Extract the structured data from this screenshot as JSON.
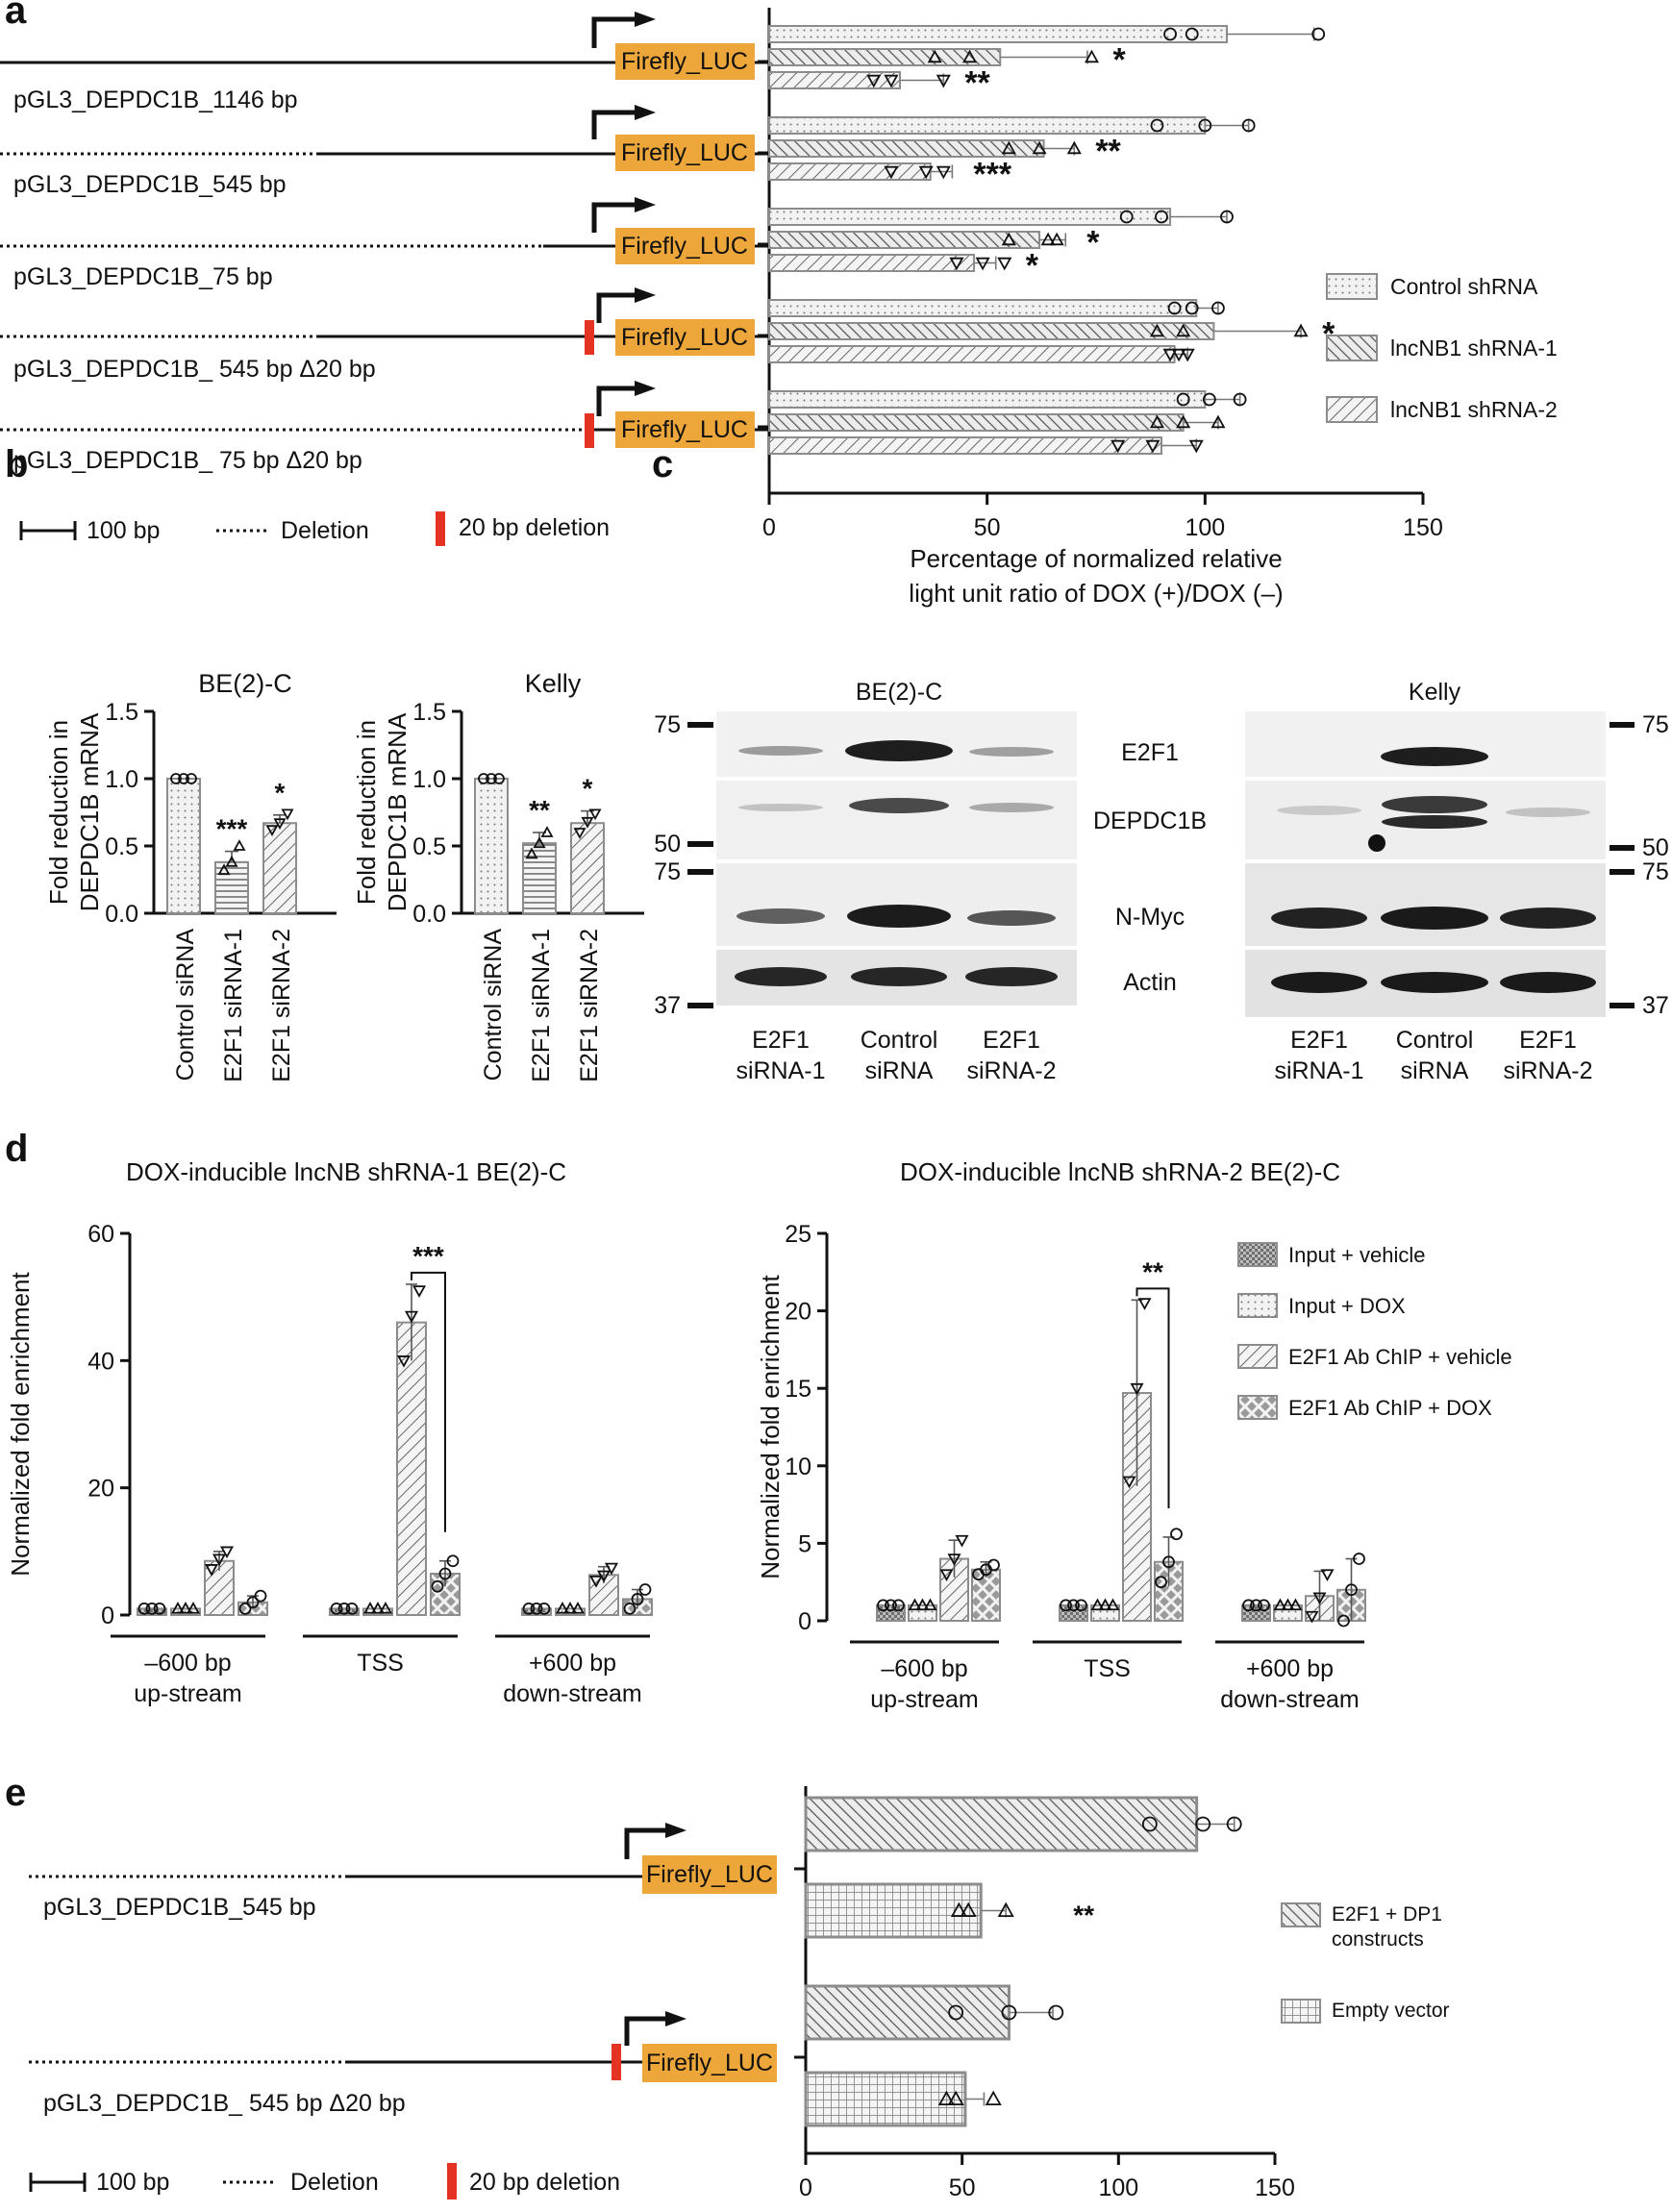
{
  "panels": [
    {
      "letter": "a"
    },
    {
      "letter": "b"
    },
    {
      "letter": "c"
    },
    {
      "letter": "d"
    },
    {
      "letter": "e"
    }
  ],
  "colors": {
    "orange": "#ECA639",
    "red": "#E53323",
    "bar_edge": "#8c8c8c",
    "bar_fill": "#eeeeee"
  },
  "construct_labels_a": [
    "pGL3_DEPDC1B_1146 bp",
    "pGL3_DEPDC1B_545 bp",
    "pGL3_DEPDC1B_75 bp",
    "pGL3_DEPDC1B_ 545 bp Δ20 bp",
    "pGL3_DEPDC1B_ 75 bp Δ20 bp"
  ],
  "construct_labels_e": [
    "pGL3_DEPDC1B_545 bp",
    "pGL3_DEPDC1B_ 545 bp Δ20 bp"
  ],
  "luc_label": "Firefly_LUC",
  "scale_legend": {
    "bp": "100 bp",
    "deletion": "Deletion",
    "del20": "20 bp deletion"
  },
  "blot": {
    "cell_lines": [
      "BE(2)-C",
      "Kelly"
    ],
    "proteins": [
      "E2F1",
      "DEPDC1B",
      "N-Myc",
      "Actin"
    ],
    "mw_markers": [
      "75",
      "50",
      "75",
      "37"
    ],
    "lanes": [
      {
        "line1": "E2F1",
        "line2": "siRNA-1"
      },
      {
        "line1": "Control",
        "line2": "siRNA"
      },
      {
        "line1": "E2F1",
        "line2": "siRNA-2"
      }
    ]
  },
  "chart_data": [
    {
      "panel": "a",
      "type": "bar",
      "orientation": "horizontal",
      "categories": [
        "pGL3_DEPDC1B_1146 bp",
        "pGL3_DEPDC1B_545 bp",
        "pGL3_DEPDC1B_75 bp",
        "pGL3_DEPDC1B_ 545 bp Δ20 bp",
        "pGL3_DEPDC1B_ 75 bp Δ20 bp"
      ],
      "series": [
        {
          "name": "Control shRNA",
          "values": [
            105,
            100,
            92,
            98,
            100
          ],
          "errors": [
            20,
            10,
            13,
            5,
            8
          ],
          "points": [
            [
              92,
              97,
              126
            ],
            [
              89,
              100,
              110
            ],
            [
              82,
              90,
              105
            ],
            [
              93,
              97,
              103
            ],
            [
              95,
              101,
              108
            ]
          ],
          "marker": "circle",
          "pattern": "dots"
        },
        {
          "name": "lncNB1 shRNA-1",
          "values": [
            53,
            63,
            62,
            102,
            95
          ],
          "errors": [
            20,
            7,
            6,
            20,
            8
          ],
          "points": [
            [
              38,
              46,
              74
            ],
            [
              55,
              62,
              70
            ],
            [
              55,
              64,
              66
            ],
            [
              89,
              95,
              122
            ],
            [
              89,
              95,
              103
            ]
          ],
          "marker": "triangle-up",
          "pattern": "hatch-cross"
        },
        {
          "name": "lncNB1 shRNA-2",
          "values": [
            30,
            37,
            47,
            93,
            90
          ],
          "errors": [
            10,
            5,
            5,
            3,
            8
          ],
          "points": [
            [
              24,
              28,
              40
            ],
            [
              28,
              36,
              40
            ],
            [
              43,
              49,
              54
            ],
            [
              92,
              94,
              96
            ],
            [
              80,
              88,
              98
            ]
          ],
          "marker": "triangle-down",
          "pattern": "hatch"
        }
      ],
      "significance": [
        {
          "category": 0,
          "series": 1,
          "label": "*"
        },
        {
          "category": 0,
          "series": 2,
          "label": "**"
        },
        {
          "category": 1,
          "series": 1,
          "label": "**"
        },
        {
          "category": 1,
          "series": 2,
          "label": "***"
        },
        {
          "category": 2,
          "series": 1,
          "label": "*"
        },
        {
          "category": 2,
          "series": 2,
          "label": "*"
        },
        {
          "category": 3,
          "series": 1,
          "label": "*"
        }
      ],
      "xlim": [
        0,
        150
      ],
      "xticks": [
        0,
        50,
        100,
        150
      ],
      "xlabel_line1": "Percentage of normalized relative",
      "xlabel_line2": "light unit ratio of DOX (+)/DOX (–)"
    },
    {
      "panel": "b",
      "type": "bar",
      "title": "BE(2)-C",
      "ylabel_line1": "Fold reduction in",
      "ylabel_line2": "DEPDC1B mRNA",
      "categories": [
        "Control siRNA",
        "E2F1 siRNA-1",
        "E2F1 siRNA-2"
      ],
      "values": [
        1.0,
        0.38,
        0.67
      ],
      "errors": [
        0,
        0.08,
        0.06
      ],
      "points": [
        [
          1.0,
          1.0,
          1.0
        ],
        [
          0.32,
          0.38,
          0.5
        ],
        [
          0.62,
          0.67,
          0.74
        ]
      ],
      "markers": [
        "circle",
        "triangle-up",
        "triangle-down"
      ],
      "patterns": [
        "dots",
        "hlines",
        "hatch"
      ],
      "significance": [
        "",
        "***",
        "*"
      ],
      "ylim": [
        0,
        1.5
      ],
      "yticks": [
        "0.0",
        "0.5",
        "1.0",
        "1.5"
      ]
    },
    {
      "panel": "b",
      "type": "bar",
      "title": "Kelly",
      "ylabel_line1": "Fold reduction in",
      "ylabel_line2": "DEPDC1B mRNA",
      "categories": [
        "Control siRNA",
        "E2F1 siRNA-1",
        "E2F1 siRNA-2"
      ],
      "values": [
        1.0,
        0.52,
        0.67
      ],
      "errors": [
        0,
        0.08,
        0.09
      ],
      "points": [
        [
          1.0,
          1.0,
          1.0
        ],
        [
          0.44,
          0.52,
          0.6
        ],
        [
          0.6,
          0.68,
          0.74
        ]
      ],
      "markers": [
        "circle",
        "triangle-up",
        "triangle-down"
      ],
      "patterns": [
        "dots",
        "hlines",
        "hatch"
      ],
      "significance": [
        "",
        "**",
        "*"
      ],
      "ylim": [
        0,
        1.5
      ],
      "yticks": [
        "0.0",
        "0.5",
        "1.0",
        "1.5"
      ]
    },
    {
      "panel": "d",
      "type": "bar",
      "title": "DOX-inducible lncNB shRNA-1 BE(2)-C",
      "ylabel": "Normalized fold enrichment",
      "groups": [
        {
          "line1": "–600 bp",
          "line2": "up-stream"
        },
        {
          "line1": "TSS",
          "line2": ""
        },
        {
          "line1": "+600 bp",
          "line2": "down-stream"
        }
      ],
      "series": [
        {
          "name": "Input + vehicle",
          "values": [
            1,
            1,
            1
          ],
          "errors": [
            0,
            0,
            0
          ],
          "points": [
            [
              1,
              1,
              1
            ],
            [
              1,
              1,
              1
            ],
            [
              1,
              1,
              1
            ]
          ],
          "marker": "circle",
          "pattern": "checker"
        },
        {
          "name": "Input + DOX",
          "values": [
            1,
            1,
            1
          ],
          "errors": [
            0,
            0,
            0
          ],
          "points": [
            [
              1,
              1,
              1
            ],
            [
              1,
              1,
              1
            ],
            [
              1,
              1,
              1
            ]
          ],
          "marker": "triangle-up",
          "pattern": "dots"
        },
        {
          "name": "E2F1 Ab ChIP + vehicle",
          "values": [
            8.5,
            46,
            6.3
          ],
          "errors": [
            1.5,
            6,
            1.3
          ],
          "points": [
            [
              7.2,
              8.8,
              10
            ],
            [
              40,
              47,
              51
            ],
            [
              5.4,
              6.2,
              7.4
            ]
          ],
          "marker": "triangle-down",
          "pattern": "hatch"
        },
        {
          "name": "E2F1 Ab ChIP + DOX",
          "values": [
            2,
            6.5,
            2.5
          ],
          "errors": [
            1,
            2,
            1.5
          ],
          "points": [
            [
              1,
              2,
              3
            ],
            [
              4.5,
              6.5,
              8.5
            ],
            [
              1,
              2.5,
              4
            ]
          ],
          "marker": "circle",
          "pattern": "xcross"
        }
      ],
      "significance": [
        {
          "group": 1,
          "from_series": 2,
          "to_series": 3,
          "label": "***"
        }
      ],
      "ylim": [
        0,
        60
      ],
      "yticks": [
        0,
        20,
        40,
        60
      ]
    },
    {
      "panel": "d",
      "type": "bar",
      "title": "DOX-inducible lncNB shRNA-2 BE(2)-C",
      "ylabel": "Normalized fold enrichment",
      "groups": [
        {
          "line1": "–600 bp",
          "line2": "up-stream"
        },
        {
          "line1": "TSS",
          "line2": ""
        },
        {
          "line1": "+600 bp",
          "line2": "down-stream"
        }
      ],
      "series": [
        {
          "name": "Input + vehicle",
          "values": [
            1,
            1,
            1
          ],
          "errors": [
            0,
            0,
            0
          ],
          "points": [
            [
              1,
              1,
              1
            ],
            [
              1,
              1,
              1
            ],
            [
              1,
              1,
              1
            ]
          ],
          "marker": "circle",
          "pattern": "checker"
        },
        {
          "name": "Input + DOX",
          "values": [
            1,
            1,
            1
          ],
          "errors": [
            0,
            0,
            0
          ],
          "points": [
            [
              1,
              1,
              1
            ],
            [
              1,
              1,
              1
            ],
            [
              1,
              1,
              1
            ]
          ],
          "marker": "triangle-up",
          "pattern": "dots"
        },
        {
          "name": "E2F1 Ab ChIP + vehicle",
          "values": [
            4,
            14.7,
            1.6
          ],
          "errors": [
            1.2,
            6,
            1.6
          ],
          "points": [
            [
              3,
              4,
              5.2
            ],
            [
              9,
              15,
              20.5
            ],
            [
              0.3,
              1.5,
              3
            ]
          ],
          "marker": "triangle-down",
          "pattern": "hatch"
        },
        {
          "name": "E2F1 Ab ChIP + DOX",
          "values": [
            3.3,
            3.8,
            2
          ],
          "errors": [
            0.5,
            1.6,
            2
          ],
          "points": [
            [
              3,
              3.3,
              3.6
            ],
            [
              2.5,
              3.8,
              5.6
            ],
            [
              0,
              2,
              4
            ]
          ],
          "marker": "circle",
          "pattern": "xcross"
        }
      ],
      "significance": [
        {
          "group": 1,
          "from_series": 2,
          "to_series": 3,
          "label": "**"
        }
      ],
      "ylim": [
        0,
        25
      ],
      "yticks": [
        0,
        5,
        10,
        15,
        20,
        25
      ]
    },
    {
      "panel": "e",
      "type": "bar",
      "orientation": "horizontal",
      "categories": [
        "pGL3_DEPDC1B_545 bp",
        "pGL3_DEPDC1B_ 545 bp Δ20 bp"
      ],
      "series": [
        {
          "name": "E2F1 + DP1 constructs",
          "legend_line1": "E2F1 + DP1",
          "legend_line2": "constructs",
          "values": [
            125,
            65
          ],
          "errors": [
            12,
            14
          ],
          "points": [
            [
              110,
              127,
              137
            ],
            [
              48,
              65,
              80
            ]
          ],
          "marker": "circle",
          "pattern": "hatch-cross"
        },
        {
          "name": "Empty vector",
          "legend_line1": "Empty vector",
          "legend_line2": "",
          "values": [
            56,
            51
          ],
          "errors": [
            8,
            6
          ],
          "points": [
            [
              49,
              52,
              64
            ],
            [
              45,
              48,
              60
            ]
          ],
          "marker": "triangle-up",
          "pattern": "grid"
        }
      ],
      "significance": [
        {
          "category": 0,
          "series": 1,
          "label": "**"
        }
      ],
      "xlim": [
        0,
        150
      ],
      "xticks": [
        0,
        50,
        100,
        150
      ]
    }
  ]
}
